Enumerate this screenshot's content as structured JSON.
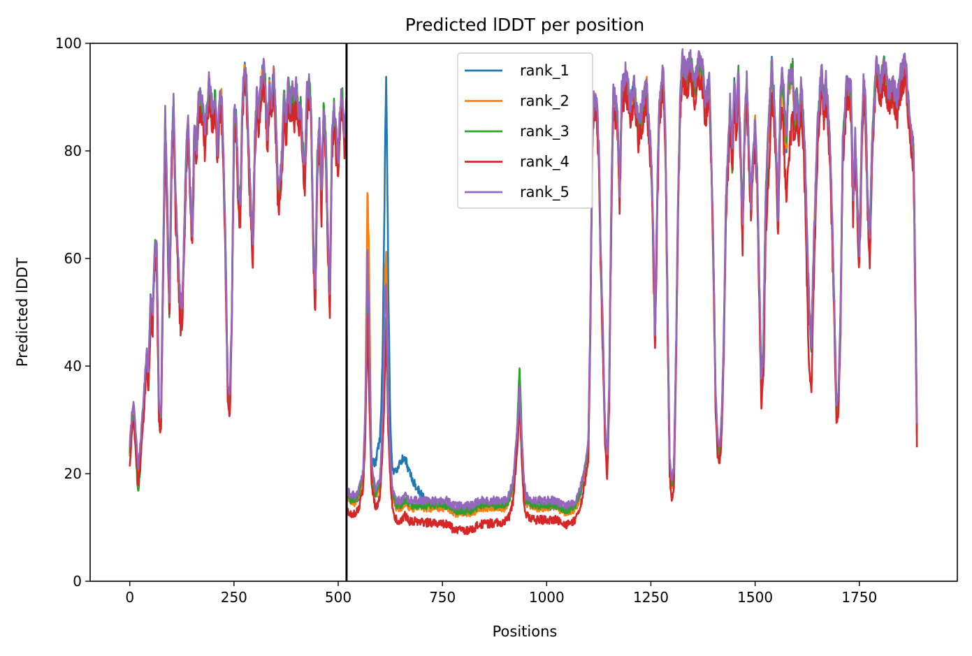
{
  "chart_data": {
    "type": "line",
    "title": "Predicted lDDT per position",
    "xlabel": "Positions",
    "ylabel": "Predicted lDDT",
    "xlim": [
      -95,
      1985
    ],
    "ylim": [
      0,
      100
    ],
    "xticks": [
      0,
      250,
      500,
      750,
      1000,
      1250,
      1500,
      1750
    ],
    "yticks": [
      0,
      20,
      40,
      60,
      80,
      100
    ],
    "grid": false,
    "legend_position": "upper-center",
    "vline": {
      "x": 520,
      "color": "#000000"
    },
    "x_range": [
      0,
      1888
    ],
    "keypoints": [
      [
        0,
        24
      ],
      [
        5,
        30
      ],
      [
        10,
        32
      ],
      [
        20,
        20
      ],
      [
        25,
        24
      ],
      [
        35,
        35
      ],
      [
        40,
        42
      ],
      [
        45,
        38
      ],
      [
        50,
        52
      ],
      [
        55,
        50
      ],
      [
        60,
        62
      ],
      [
        65,
        60
      ],
      [
        70,
        32
      ],
      [
        75,
        30
      ],
      [
        80,
        58
      ],
      [
        85,
        86
      ],
      [
        90,
        70
      ],
      [
        95,
        50
      ],
      [
        100,
        78
      ],
      [
        105,
        88
      ],
      [
        110,
        70
      ],
      [
        120,
        52
      ],
      [
        125,
        48
      ],
      [
        130,
        62
      ],
      [
        135,
        78
      ],
      [
        140,
        86
      ],
      [
        145,
        72
      ],
      [
        150,
        64
      ],
      [
        155,
        84
      ],
      [
        160,
        80
      ],
      [
        165,
        90
      ],
      [
        175,
        88
      ],
      [
        180,
        82
      ],
      [
        190,
        92
      ],
      [
        200,
        86
      ],
      [
        205,
        90
      ],
      [
        210,
        80
      ],
      [
        215,
        88
      ],
      [
        220,
        90
      ],
      [
        225,
        78
      ],
      [
        230,
        60
      ],
      [
        235,
        36
      ],
      [
        240,
        33
      ],
      [
        245,
        50
      ],
      [
        250,
        85
      ],
      [
        255,
        86
      ],
      [
        260,
        72
      ],
      [
        265,
        68
      ],
      [
        270,
        88
      ],
      [
        275,
        95
      ],
      [
        280,
        92
      ],
      [
        285,
        80
      ],
      [
        290,
        70
      ],
      [
        295,
        62
      ],
      [
        300,
        82
      ],
      [
        305,
        90
      ],
      [
        310,
        86
      ],
      [
        315,
        92
      ],
      [
        320,
        95
      ],
      [
        325,
        92
      ],
      [
        330,
        82
      ],
      [
        335,
        92
      ],
      [
        340,
        88
      ],
      [
        345,
        94
      ],
      [
        350,
        86
      ],
      [
        355,
        74
      ],
      [
        360,
        72
      ],
      [
        365,
        78
      ],
      [
        370,
        90
      ],
      [
        375,
        84
      ],
      [
        380,
        92
      ],
      [
        385,
        88
      ],
      [
        390,
        90
      ],
      [
        395,
        88
      ],
      [
        400,
        92
      ],
      [
        405,
        86
      ],
      [
        410,
        88
      ],
      [
        415,
        80
      ],
      [
        420,
        76
      ],
      [
        425,
        90
      ],
      [
        430,
        92
      ],
      [
        435,
        88
      ],
      [
        440,
        64
      ],
      [
        445,
        52
      ],
      [
        450,
        78
      ],
      [
        455,
        84
      ],
      [
        460,
        70
      ],
      [
        465,
        88
      ],
      [
        470,
        82
      ],
      [
        475,
        64
      ],
      [
        480,
        52
      ],
      [
        485,
        82
      ],
      [
        490,
        88
      ],
      [
        495,
        82
      ],
      [
        500,
        78
      ],
      [
        505,
        88
      ],
      [
        510,
        90
      ],
      [
        515,
        82
      ],
      [
        520,
        88
      ],
      [
        521,
        16
      ],
      [
        530,
        15
      ],
      [
        540,
        15
      ],
      [
        550,
        16
      ],
      [
        560,
        20
      ],
      [
        565,
        30
      ],
      [
        570,
        50
      ],
      [
        575,
        35
      ],
      [
        580,
        20
      ],
      [
        590,
        16
      ],
      [
        600,
        18
      ],
      [
        605,
        25
      ],
      [
        610,
        35
      ],
      [
        615,
        50
      ],
      [
        620,
        30
      ],
      [
        625,
        22
      ],
      [
        630,
        16
      ],
      [
        640,
        14
      ],
      [
        650,
        14
      ],
      [
        660,
        15
      ],
      [
        670,
        14
      ],
      [
        680,
        14
      ],
      [
        700,
        14
      ],
      [
        720,
        14
      ],
      [
        740,
        14
      ],
      [
        760,
        14
      ],
      [
        780,
        13
      ],
      [
        800,
        13
      ],
      [
        820,
        13
      ],
      [
        840,
        14
      ],
      [
        860,
        14
      ],
      [
        880,
        14
      ],
      [
        900,
        14
      ],
      [
        910,
        15
      ],
      [
        920,
        18
      ],
      [
        930,
        28
      ],
      [
        935,
        35
      ],
      [
        940,
        26
      ],
      [
        945,
        18
      ],
      [
        950,
        15
      ],
      [
        970,
        14
      ],
      [
        1000,
        14
      ],
      [
        1020,
        14
      ],
      [
        1050,
        13
      ],
      [
        1070,
        14
      ],
      [
        1080,
        16
      ],
      [
        1090,
        20
      ],
      [
        1100,
        25
      ],
      [
        1105,
        50
      ],
      [
        1110,
        85
      ],
      [
        1115,
        90
      ],
      [
        1120,
        88
      ],
      [
        1125,
        80
      ],
      [
        1130,
        60
      ],
      [
        1140,
        28
      ],
      [
        1145,
        22
      ],
      [
        1150,
        35
      ],
      [
        1155,
        70
      ],
      [
        1160,
        90
      ],
      [
        1170,
        86
      ],
      [
        1175,
        72
      ],
      [
        1180,
        90
      ],
      [
        1190,
        94
      ],
      [
        1200,
        88
      ],
      [
        1210,
        92
      ],
      [
        1220,
        84
      ],
      [
        1230,
        88
      ],
      [
        1240,
        92
      ],
      [
        1245,
        84
      ],
      [
        1250,
        80
      ],
      [
        1255,
        66
      ],
      [
        1260,
        46
      ],
      [
        1265,
        70
      ],
      [
        1270,
        88
      ],
      [
        1280,
        94
      ],
      [
        1285,
        82
      ],
      [
        1290,
        50
      ],
      [
        1295,
        22
      ],
      [
        1300,
        18
      ],
      [
        1305,
        20
      ],
      [
        1310,
        40
      ],
      [
        1315,
        70
      ],
      [
        1320,
        88
      ],
      [
        1325,
        96
      ],
      [
        1335,
        94
      ],
      [
        1345,
        96
      ],
      [
        1355,
        92
      ],
      [
        1365,
        96
      ],
      [
        1375,
        94
      ],
      [
        1380,
        88
      ],
      [
        1390,
        92
      ],
      [
        1395,
        78
      ],
      [
        1400,
        60
      ],
      [
        1405,
        35
      ],
      [
        1410,
        26
      ],
      [
        1415,
        24
      ],
      [
        1420,
        30
      ],
      [
        1425,
        45
      ],
      [
        1430,
        70
      ],
      [
        1440,
        88
      ],
      [
        1445,
        78
      ],
      [
        1450,
        92
      ],
      [
        1455,
        85
      ],
      [
        1460,
        94
      ],
      [
        1465,
        80
      ],
      [
        1470,
        65
      ],
      [
        1475,
        85
      ],
      [
        1480,
        92
      ],
      [
        1485,
        80
      ],
      [
        1490,
        70
      ],
      [
        1500,
        85
      ],
      [
        1505,
        75
      ],
      [
        1510,
        55
      ],
      [
        1515,
        36
      ],
      [
        1520,
        44
      ],
      [
        1525,
        70
      ],
      [
        1530,
        80
      ],
      [
        1535,
        88
      ],
      [
        1540,
        96
      ],
      [
        1545,
        90
      ],
      [
        1550,
        80
      ],
      [
        1555,
        68
      ],
      [
        1560,
        88
      ],
      [
        1565,
        94
      ],
      [
        1570,
        88
      ],
      [
        1575,
        80
      ],
      [
        1580,
        92
      ],
      [
        1590,
        95
      ],
      [
        1595,
        86
      ],
      [
        1600,
        90
      ],
      [
        1605,
        84
      ],
      [
        1610,
        92
      ],
      [
        1615,
        86
      ],
      [
        1620,
        78
      ],
      [
        1625,
        62
      ],
      [
        1630,
        50
      ],
      [
        1635,
        44
      ],
      [
        1640,
        60
      ],
      [
        1645,
        72
      ],
      [
        1650,
        84
      ],
      [
        1655,
        90
      ],
      [
        1660,
        94
      ],
      [
        1665,
        88
      ],
      [
        1670,
        92
      ],
      [
        1680,
        80
      ],
      [
        1690,
        50
      ],
      [
        1695,
        32
      ],
      [
        1700,
        34
      ],
      [
        1705,
        50
      ],
      [
        1710,
        80
      ],
      [
        1720,
        92
      ],
      [
        1730,
        90
      ],
      [
        1735,
        70
      ],
      [
        1740,
        82
      ],
      [
        1745,
        70
      ],
      [
        1750,
        60
      ],
      [
        1755,
        80
      ],
      [
        1760,
        92
      ],
      [
        1765,
        88
      ],
      [
        1770,
        70
      ],
      [
        1775,
        62
      ],
      [
        1780,
        80
      ],
      [
        1790,
        95
      ],
      [
        1800,
        92
      ],
      [
        1810,
        96
      ],
      [
        1820,
        90
      ],
      [
        1830,
        92
      ],
      [
        1840,
        88
      ],
      [
        1850,
        94
      ],
      [
        1860,
        96
      ],
      [
        1870,
        86
      ],
      [
        1875,
        82
      ],
      [
        1880,
        80
      ],
      [
        1885,
        50
      ],
      [
        1888,
        28
      ]
    ],
    "series": [
      {
        "name": "rank_1",
        "color": "#1f77b4",
        "seed": 11,
        "bias": 0.0,
        "bumps": [
          [
            615,
            38,
            7
          ],
          [
            600,
            8,
            18
          ],
          [
            650,
            7,
            25
          ],
          [
            680,
            3,
            30
          ]
        ]
      },
      {
        "name": "rank_2",
        "color": "#ff7f0e",
        "seed": 23,
        "bias": -0.3,
        "bumps": [
          [
            572,
            24,
            5
          ],
          [
            614,
            14,
            5
          ]
        ]
      },
      {
        "name": "rank_3",
        "color": "#2ca02c",
        "seed": 37,
        "bias": 0.2,
        "bumps": [
          [
            935,
            4,
            5
          ],
          [
            20,
            -4,
            10
          ]
        ]
      },
      {
        "name": "rank_4",
        "color": "#d62728",
        "seed": 51,
        "bias": -2.5,
        "bumps": [
          [
            1630,
            -8,
            12
          ],
          [
            1580,
            -10,
            14
          ],
          [
            1530,
            -6,
            12
          ],
          [
            800,
            -1,
            120
          ]
        ]
      },
      {
        "name": "rank_5",
        "color": "#9467bd",
        "seed": 67,
        "bias": 1.0,
        "bumps": [
          [
            572,
            10,
            5
          ],
          [
            612,
            8,
            5
          ]
        ]
      }
    ]
  }
}
